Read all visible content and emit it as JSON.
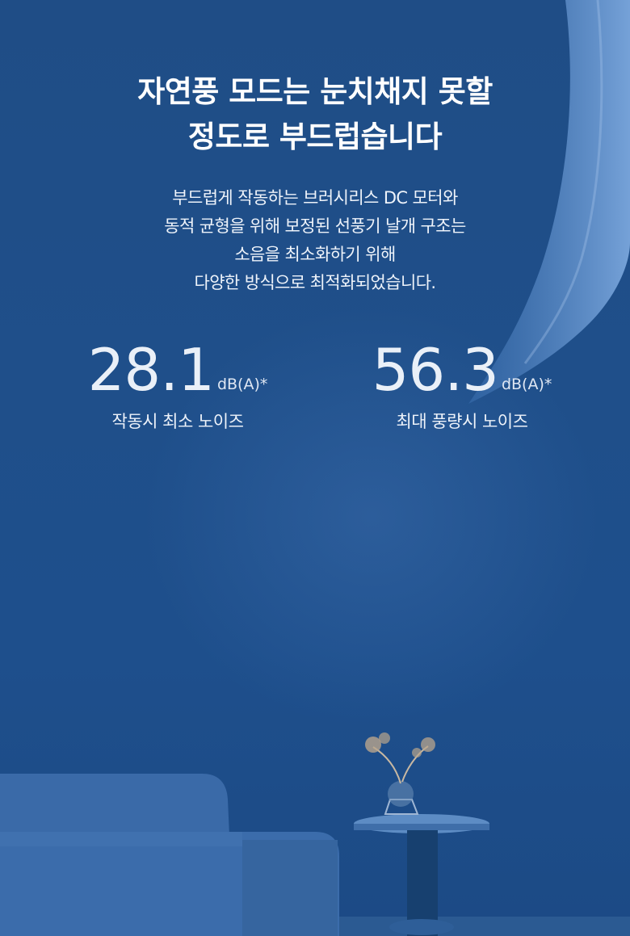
{
  "headline": {
    "line1": "자연풍 모드는 눈치채지 못할",
    "line2": "정도로 부드럽습니다"
  },
  "description": {
    "line1": "부드럽게 작동하는 브러시리스 DC 모터와",
    "line2": "동적 균형을 위해 보정된 선풍기 날개 구조는",
    "line3": "소음을 최소화하기 위해",
    "line4": "다양한 방식으로 최적화되었습니다."
  },
  "stats": [
    {
      "value": "28.1",
      "unit": "dB(A)*",
      "label": "작동시 최소 노이즈"
    },
    {
      "value": "56.3",
      "unit": "dB(A)*",
      "label": "최대 풍량시 노이즈"
    }
  ],
  "colors": {
    "background": "#1f4f87",
    "text": "#ffffff"
  }
}
